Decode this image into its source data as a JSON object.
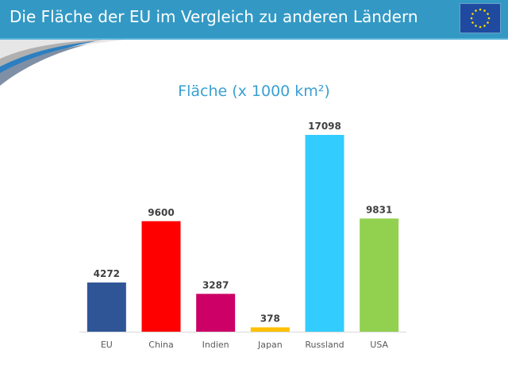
{
  "header": {
    "title": "Die Fläche der EU im Vergleich zu anderen Ländern",
    "logo": "eu-flag"
  },
  "colors": {
    "header": "#3399c4",
    "title": "#3aa0d0"
  },
  "chart_data": {
    "type": "bar",
    "title": "Fläche (x 1000 km²)",
    "xlabel": "",
    "ylabel": "",
    "categories": [
      "EU",
      "China",
      "Indien",
      "Japan",
      "Russland",
      "USA"
    ],
    "values": [
      4272,
      9600,
      3287,
      378,
      17098,
      9831
    ],
    "value_labels": [
      "4272",
      "9600",
      "3287",
      "378",
      "17098",
      "9831"
    ],
    "colors": [
      "#2f5597",
      "#ff0000",
      "#cc0066",
      "#ffc000",
      "#33ccff",
      "#92d050"
    ],
    "ylim": [
      0,
      17098
    ],
    "grid": false,
    "legend": "none"
  }
}
